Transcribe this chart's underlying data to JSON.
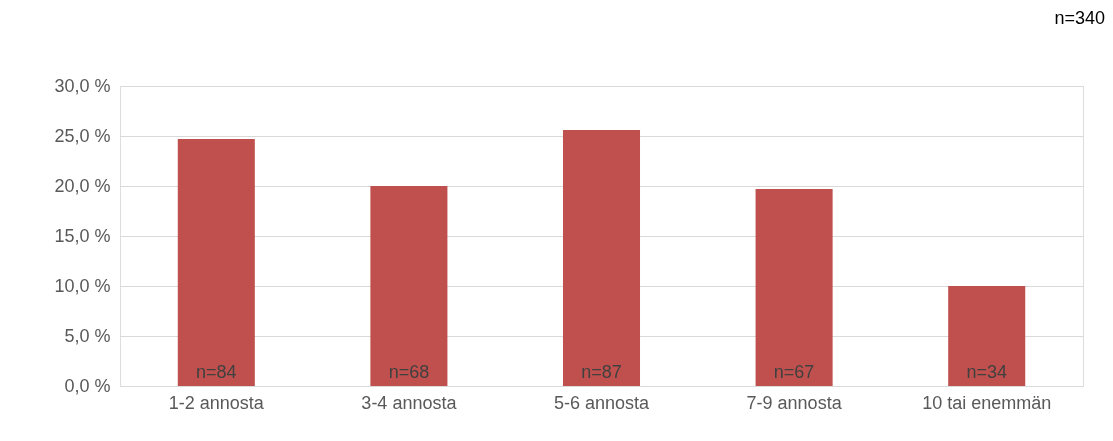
{
  "chart_data": {
    "type": "bar",
    "categories": [
      "1-2 annosta",
      "3-4 annosta",
      "5-6 annosta",
      "7-9 annosta",
      "10 tai enemmän"
    ],
    "values": [
      24.7,
      20.0,
      25.6,
      19.7,
      10.0
    ],
    "color": "#c0504d",
    "ylim": [
      0,
      30
    ],
    "yticks": [
      {
        "value": 0,
        "label": "0,0 %"
      },
      {
        "value": 5,
        "label": "5,0 %"
      },
      {
        "value": 10,
        "label": "10,0 %"
      },
      {
        "value": 15,
        "label": "15,0 %"
      },
      {
        "value": 20,
        "label": "20,0 %"
      },
      {
        "value": 25,
        "label": "25,0 %"
      },
      {
        "value": 30,
        "label": "30,0 %"
      }
    ],
    "grid": "y",
    "annotations": [
      "n=340",
      {
        "text": "n=84",
        "x": "1-2 annosta",
        "y": 0
      },
      {
        "text": "n=68",
        "x": "3-4 annosta",
        "y": 0
      },
      {
        "text": "n=87",
        "x": "5-6 annosta",
        "y": 0
      },
      {
        "text": "n=67",
        "x": "7-9 annosta",
        "y": 0
      },
      {
        "text": "n=34",
        "x": "10 tai enemmän",
        "y": 0
      }
    ]
  }
}
